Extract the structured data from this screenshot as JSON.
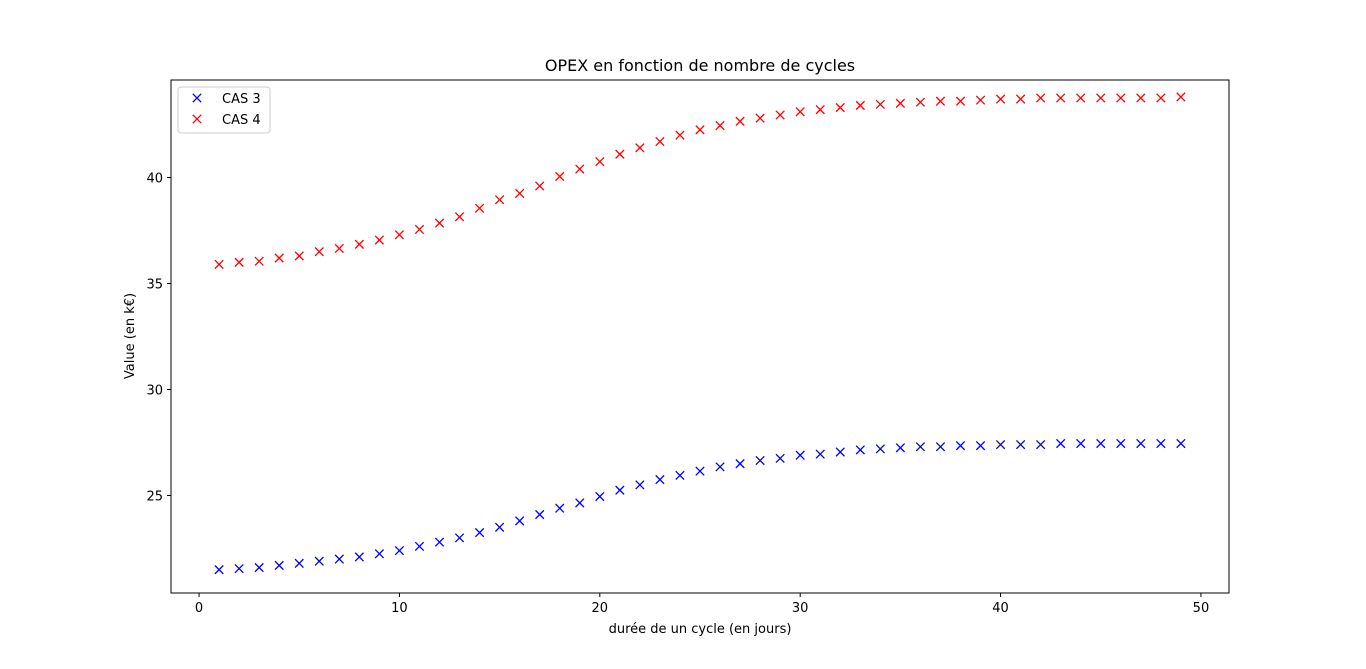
{
  "chart_data": {
    "type": "scatter",
    "title": "OPEX en fonction de nombre de cycles",
    "xlabel": "durée de un cycle (en jours)",
    "ylabel": "Value (en k€)",
    "xlim": [
      -1.4,
      51.4
    ],
    "ylim": [
      20.4,
      44.6
    ],
    "xticks": [
      0,
      10,
      20,
      30,
      40,
      50
    ],
    "yticks": [
      25,
      30,
      35,
      40
    ],
    "grid": false,
    "legend_position": "top-left",
    "marker": "x",
    "x": [
      1,
      2,
      3,
      4,
      5,
      6,
      7,
      8,
      9,
      10,
      11,
      12,
      13,
      14,
      15,
      16,
      17,
      18,
      19,
      20,
      21,
      22,
      23,
      24,
      25,
      26,
      27,
      28,
      29,
      30,
      31,
      32,
      33,
      34,
      35,
      36,
      37,
      38,
      39,
      40,
      41,
      42,
      43,
      44,
      45,
      46,
      47,
      48,
      49
    ],
    "series": [
      {
        "name": "CAS 3",
        "color": "#0000ff",
        "values": [
          21.5,
          21.55,
          21.6,
          21.7,
          21.8,
          21.9,
          22.0,
          22.1,
          22.25,
          22.4,
          22.6,
          22.8,
          23.0,
          23.25,
          23.5,
          23.8,
          24.1,
          24.4,
          24.65,
          24.95,
          25.25,
          25.5,
          25.75,
          25.95,
          26.15,
          26.35,
          26.5,
          26.65,
          26.75,
          26.9,
          26.95,
          27.05,
          27.15,
          27.2,
          27.25,
          27.3,
          27.3,
          27.35,
          27.35,
          27.4,
          27.4,
          27.4,
          27.45,
          27.45,
          27.45,
          27.45,
          27.45,
          27.45,
          27.45
        ]
      },
      {
        "name": "CAS 4",
        "color": "#ff0000",
        "values": [
          35.9,
          36.0,
          36.05,
          36.2,
          36.3,
          36.5,
          36.65,
          36.85,
          37.05,
          37.3,
          37.55,
          37.85,
          38.15,
          38.55,
          38.95,
          39.25,
          39.6,
          40.05,
          40.4,
          40.75,
          41.1,
          41.4,
          41.7,
          42.0,
          42.25,
          42.45,
          42.65,
          42.8,
          42.95,
          43.1,
          43.2,
          43.3,
          43.4,
          43.45,
          43.5,
          43.55,
          43.6,
          43.6,
          43.65,
          43.7,
          43.7,
          43.75,
          43.75,
          43.75,
          43.75,
          43.75,
          43.75,
          43.75,
          43.8
        ]
      }
    ]
  }
}
